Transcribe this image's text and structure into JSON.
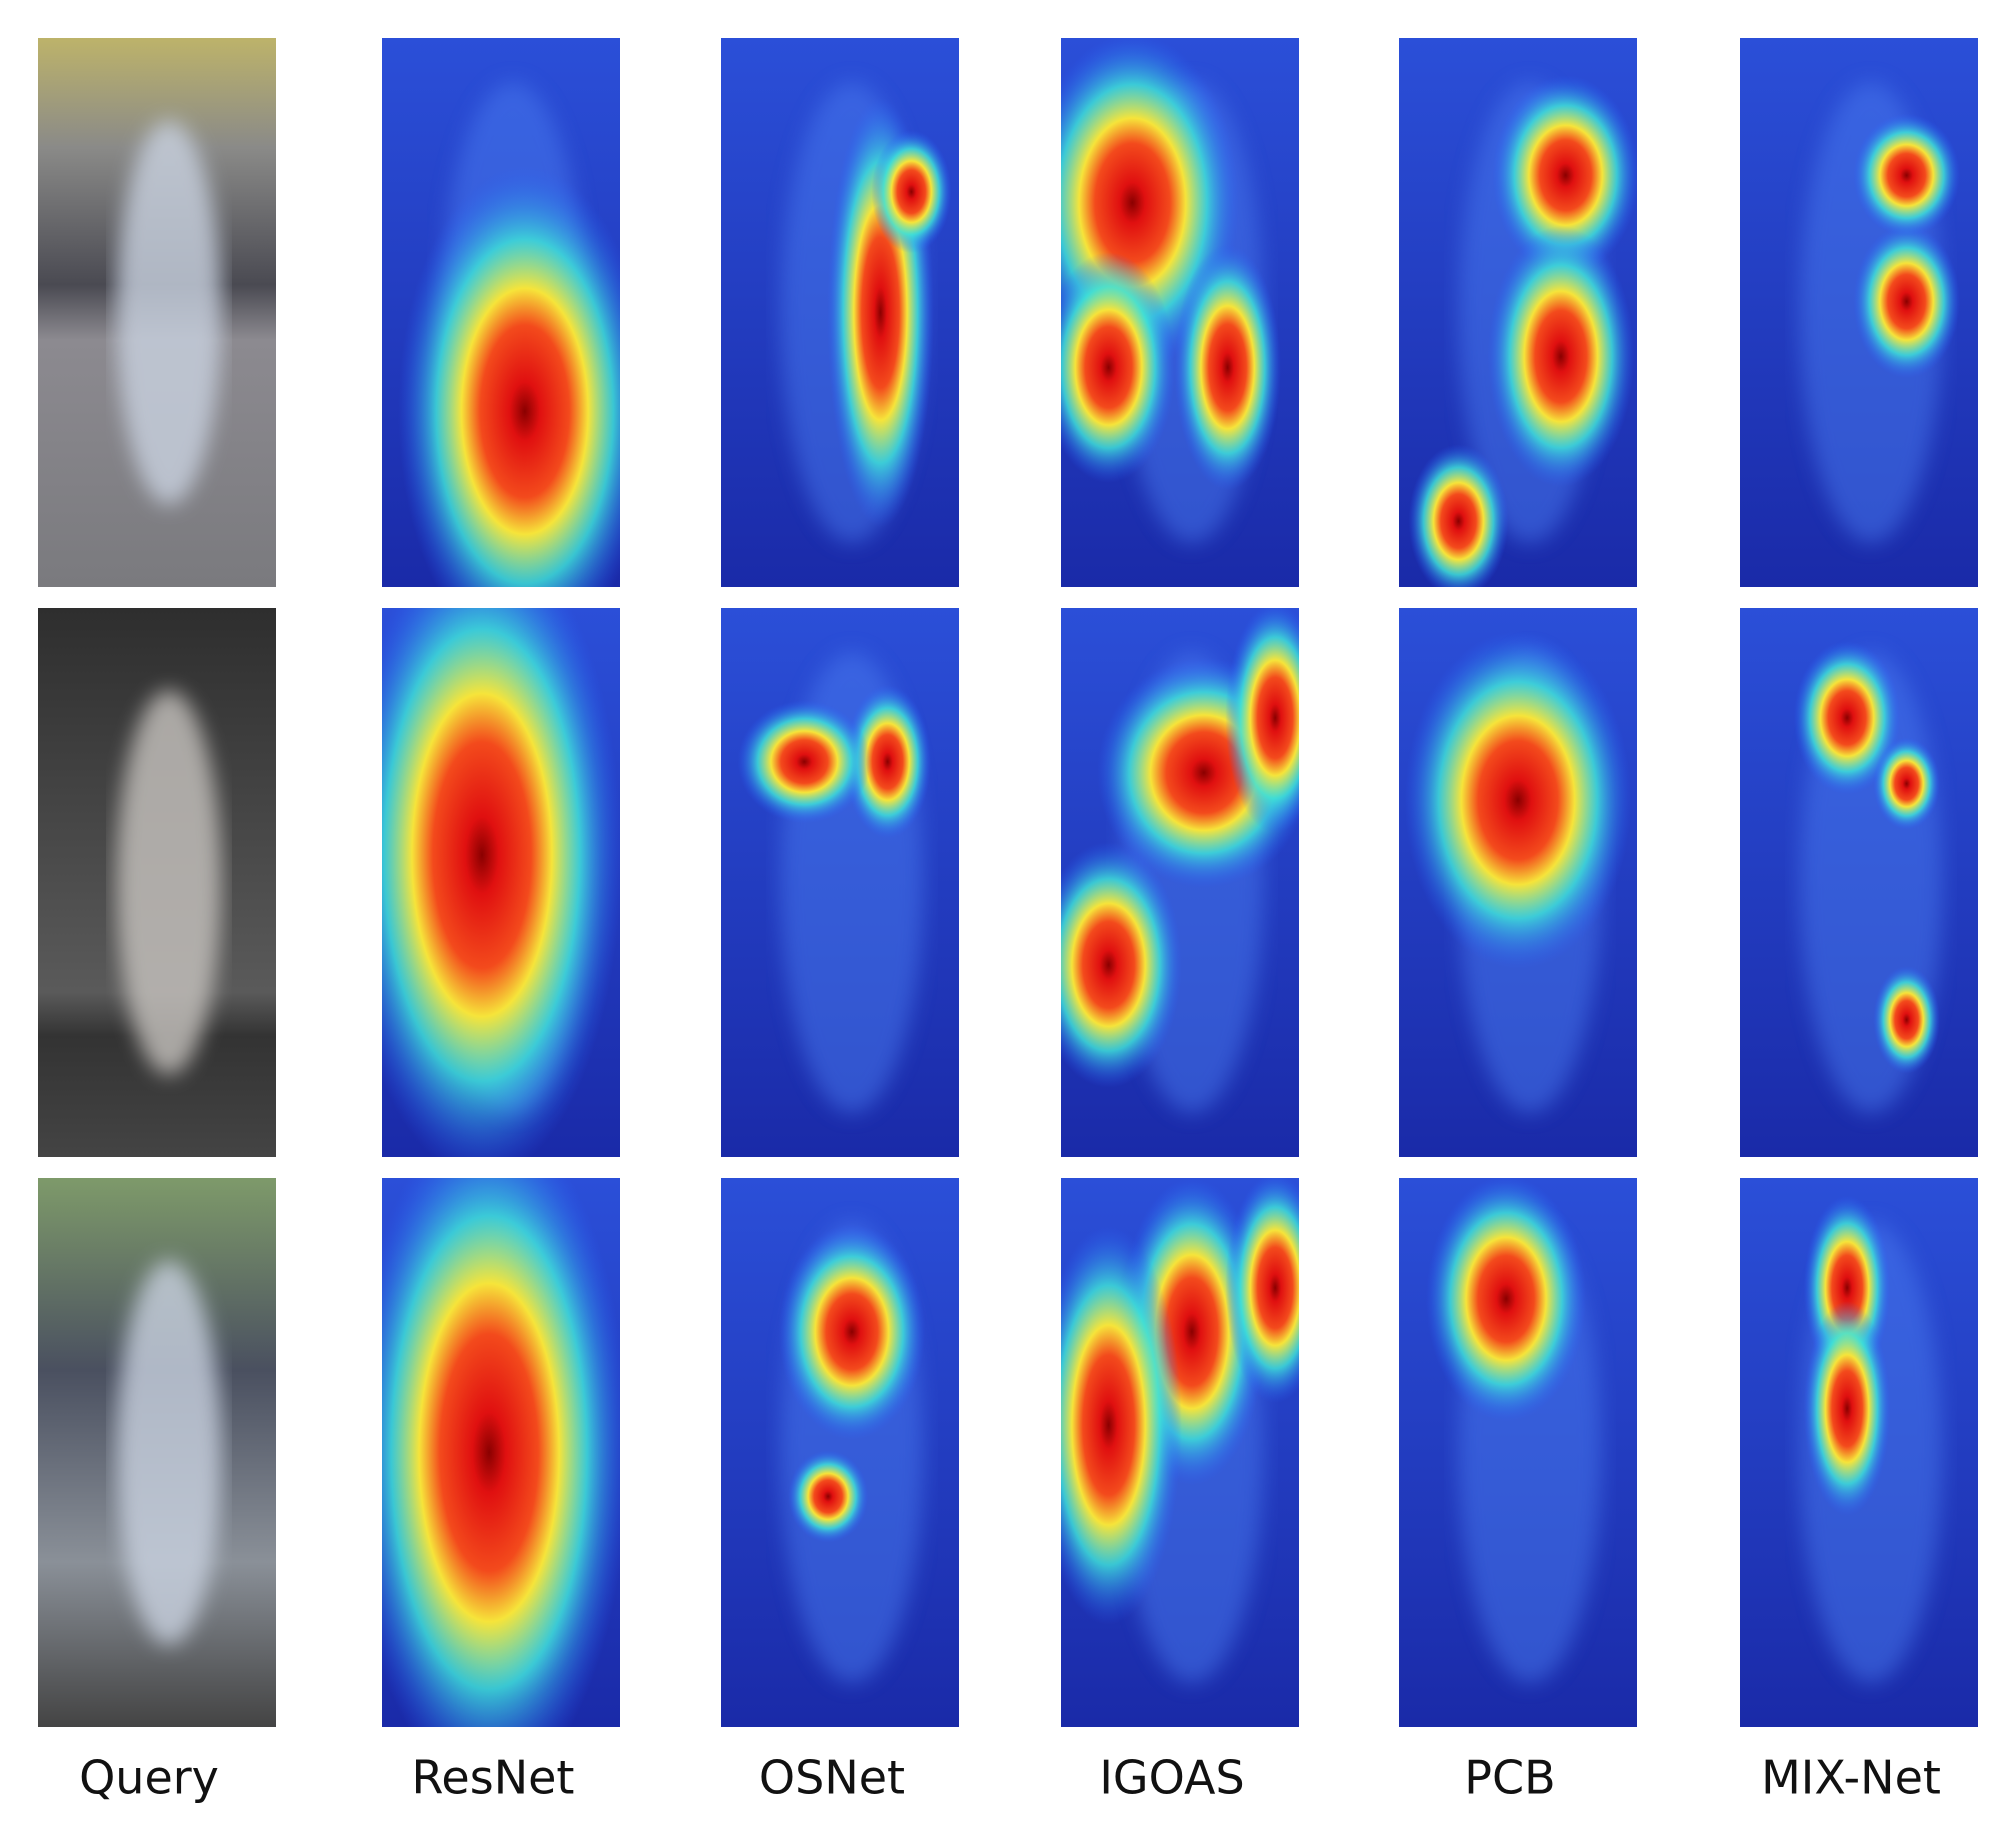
{
  "labels": [
    "Query",
    "ResNet",
    "OSNet",
    "IGOAS",
    "PCB",
    "MIX-Net"
  ]
}
